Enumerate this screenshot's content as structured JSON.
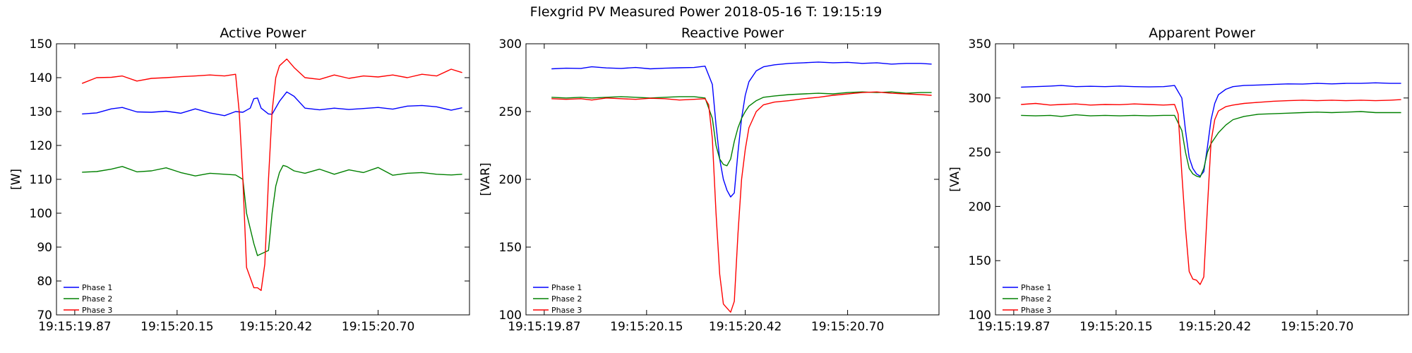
{
  "figure_title": "Flexgrid PV Measured Power 2018-05-16 T: 19:15:19",
  "colors": {
    "phase1": "#0000ff",
    "phase2": "#008000",
    "phase3": "#ff0000"
  },
  "chart_data": [
    {
      "type": "line",
      "title": "Active Power",
      "xlabel": "",
      "ylabel": "[W]",
      "ylim": [
        70,
        150
      ],
      "yticks": [
        70,
        80,
        90,
        100,
        110,
        120,
        130,
        140,
        150
      ],
      "x_range_s": [
        19.82,
        20.95
      ],
      "xticks": [
        19.87,
        20.15,
        20.42,
        20.7
      ],
      "xtick_labels": [
        "19:15:19.87",
        "19:15:20.15",
        "19:15:20.42",
        "19:15:20.70"
      ],
      "grid": false,
      "legend_placement": "bottom-left",
      "series": [
        {
          "name": "Phase 1",
          "color": "#0000ff",
          "x": [
            19.89,
            19.93,
            19.97,
            20.0,
            20.04,
            20.08,
            20.12,
            20.16,
            20.2,
            20.24,
            20.28,
            20.31,
            20.33,
            20.35,
            20.36,
            20.37,
            20.38,
            20.4,
            20.41,
            20.43,
            20.45,
            20.47,
            20.5,
            20.54,
            20.58,
            20.62,
            20.66,
            20.7,
            20.74,
            20.78,
            20.82,
            20.86,
            20.9,
            20.93
          ],
          "y": [
            129.3,
            129.6,
            130.8,
            131.2,
            129.9,
            129.8,
            130.1,
            129.5,
            130.8,
            129.6,
            128.8,
            130.0,
            129.8,
            131.0,
            133.8,
            134.0,
            131.0,
            129.3,
            129.2,
            133.0,
            135.8,
            134.5,
            131.0,
            130.5,
            131.0,
            130.6,
            130.9,
            131.2,
            130.7,
            131.6,
            131.8,
            131.4,
            130.4,
            131.1
          ]
        },
        {
          "name": "Phase 2",
          "color": "#008000",
          "x": [
            19.89,
            19.93,
            19.97,
            20.0,
            20.04,
            20.08,
            20.12,
            20.16,
            20.2,
            20.24,
            20.28,
            20.31,
            20.33,
            20.34,
            20.36,
            20.37,
            20.38,
            20.4,
            20.41,
            20.42,
            20.43,
            20.44,
            20.45,
            20.47,
            20.5,
            20.54,
            20.58,
            20.62,
            20.66,
            20.7,
            20.74,
            20.78,
            20.82,
            20.86,
            20.9,
            20.93
          ],
          "y": [
            112.1,
            112.3,
            113.0,
            113.8,
            112.2,
            112.5,
            113.4,
            112.0,
            111.0,
            111.8,
            111.5,
            111.3,
            110.0,
            100.0,
            91.0,
            87.5,
            88.0,
            89.0,
            100.0,
            108.0,
            112.0,
            114.1,
            113.8,
            112.5,
            111.8,
            113.0,
            111.5,
            112.8,
            112.0,
            113.5,
            111.2,
            111.8,
            112.0,
            111.5,
            111.3,
            111.5
          ]
        },
        {
          "name": "Phase 3",
          "color": "#ff0000",
          "x": [
            19.89,
            19.93,
            19.97,
            20.0,
            20.04,
            20.08,
            20.12,
            20.16,
            20.2,
            20.24,
            20.28,
            20.31,
            20.32,
            20.33,
            20.34,
            20.36,
            20.37,
            20.38,
            20.39,
            20.4,
            20.41,
            20.42,
            20.43,
            20.45,
            20.47,
            20.5,
            20.54,
            20.58,
            20.62,
            20.66,
            20.7,
            20.74,
            20.78,
            20.82,
            20.86,
            20.9,
            20.93
          ],
          "y": [
            138.3,
            140.0,
            140.1,
            140.5,
            139.0,
            139.8,
            140.0,
            140.3,
            140.5,
            140.8,
            140.5,
            141.0,
            130.0,
            110.0,
            84.0,
            78.0,
            78.0,
            77.2,
            85.0,
            110.0,
            130.0,
            140.0,
            143.5,
            145.5,
            143.0,
            140.0,
            139.5,
            140.8,
            139.8,
            140.5,
            140.2,
            140.8,
            140.0,
            141.0,
            140.5,
            142.5,
            141.5
          ]
        }
      ]
    },
    {
      "type": "line",
      "title": "Reactive Power",
      "xlabel": "",
      "ylabel": "[VAR]",
      "ylim": [
        100,
        300
      ],
      "yticks": [
        100,
        150,
        200,
        250,
        300
      ],
      "x_range_s": [
        19.82,
        20.95
      ],
      "xticks": [
        19.87,
        20.15,
        20.42,
        20.7
      ],
      "xtick_labels": [
        "19:15:19.87",
        "19:15:20.15",
        "19:15:20.42",
        "19:15:20.70"
      ],
      "grid": false,
      "legend_placement": "bottom-left",
      "series": [
        {
          "name": "Phase 1",
          "color": "#0000ff",
          "x": [
            19.89,
            19.93,
            19.97,
            20.0,
            20.04,
            20.08,
            20.12,
            20.16,
            20.2,
            20.24,
            20.28,
            20.31,
            20.33,
            20.34,
            20.35,
            20.36,
            20.37,
            20.38,
            20.39,
            20.4,
            20.41,
            20.42,
            20.43,
            20.45,
            20.47,
            20.5,
            20.54,
            20.58,
            20.62,
            20.66,
            20.7,
            20.74,
            20.78,
            20.82,
            20.86,
            20.9,
            20.93
          ],
          "y": [
            281.5,
            282.0,
            281.8,
            283.0,
            282.2,
            281.8,
            282.5,
            281.5,
            282.0,
            282.3,
            282.5,
            283.5,
            270.0,
            240.0,
            215.0,
            200.0,
            192.0,
            187.0,
            190.0,
            220.0,
            245.0,
            262.0,
            272.0,
            280.0,
            283.0,
            284.5,
            285.5,
            286.0,
            286.5,
            286.0,
            286.3,
            285.5,
            286.0,
            285.0,
            285.5,
            285.5,
            285.0
          ]
        },
        {
          "name": "Phase 2",
          "color": "#008000",
          "x": [
            19.89,
            19.93,
            19.97,
            20.0,
            20.04,
            20.08,
            20.12,
            20.16,
            20.2,
            20.24,
            20.28,
            20.31,
            20.33,
            20.34,
            20.35,
            20.36,
            20.37,
            20.38,
            20.39,
            20.4,
            20.41,
            20.42,
            20.43,
            20.45,
            20.47,
            20.5,
            20.54,
            20.58,
            20.62,
            20.66,
            20.7,
            20.74,
            20.78,
            20.82,
            20.86,
            20.9,
            20.93
          ],
          "y": [
            260.5,
            260.0,
            260.5,
            260.0,
            260.5,
            261.0,
            260.5,
            260.0,
            260.5,
            261.0,
            261.0,
            260.0,
            245.0,
            225.0,
            215.0,
            211.0,
            210.0,
            215.0,
            228.0,
            238.0,
            245.0,
            250.0,
            254.0,
            258.0,
            260.5,
            261.5,
            262.5,
            263.0,
            263.5,
            263.0,
            264.0,
            264.5,
            264.0,
            264.5,
            263.5,
            264.0,
            264.0
          ]
        },
        {
          "name": "Phase 3",
          "color": "#ff0000",
          "x": [
            19.89,
            19.93,
            19.97,
            20.0,
            20.04,
            20.08,
            20.12,
            20.16,
            20.2,
            20.24,
            20.28,
            20.31,
            20.32,
            20.33,
            20.34,
            20.35,
            20.36,
            20.37,
            20.38,
            20.39,
            20.4,
            20.41,
            20.42,
            20.43,
            20.45,
            20.47,
            20.5,
            20.54,
            20.58,
            20.62,
            20.66,
            20.7,
            20.74,
            20.78,
            20.82,
            20.86,
            20.9,
            20.93
          ],
          "y": [
            259.5,
            259.0,
            259.5,
            258.5,
            260.0,
            259.5,
            259.0,
            259.8,
            259.5,
            258.5,
            259.0,
            259.5,
            255.0,
            230.0,
            175.0,
            130.0,
            108.0,
            105.0,
            102.0,
            110.0,
            160.0,
            200.0,
            222.0,
            238.0,
            250.0,
            255.0,
            257.0,
            258.0,
            259.5,
            260.5,
            262.0,
            263.0,
            264.0,
            264.5,
            263.5,
            263.0,
            262.5,
            262.0
          ]
        }
      ]
    },
    {
      "type": "line",
      "title": "Apparent Power",
      "xlabel": "",
      "ylabel": "[VA]",
      "ylim": [
        100,
        350
      ],
      "yticks": [
        100,
        150,
        200,
        250,
        300,
        350
      ],
      "x_range_s": [
        19.82,
        20.95
      ],
      "xticks": [
        19.87,
        20.15,
        20.42,
        20.7
      ],
      "xtick_labels": [
        "19:15:19.87",
        "19:15:20.15",
        "19:15:20.42",
        "19:15:20.70"
      ],
      "grid": false,
      "legend_placement": "bottom-left",
      "series": [
        {
          "name": "Phase 1",
          "color": "#0000ff",
          "x": [
            19.89,
            19.93,
            19.97,
            20.0,
            20.04,
            20.08,
            20.12,
            20.16,
            20.2,
            20.24,
            20.28,
            20.31,
            20.33,
            20.34,
            20.35,
            20.36,
            20.37,
            20.38,
            20.39,
            20.4,
            20.41,
            20.42,
            20.43,
            20.45,
            20.47,
            20.5,
            20.54,
            20.58,
            20.62,
            20.66,
            20.7,
            20.74,
            20.78,
            20.82,
            20.86,
            20.9,
            20.93
          ],
          "y": [
            310.0,
            310.5,
            311.0,
            311.5,
            310.5,
            310.8,
            310.5,
            311.0,
            310.5,
            310.2,
            310.5,
            311.5,
            300.0,
            270.0,
            245.0,
            235.0,
            230.0,
            228.0,
            232.0,
            255.0,
            280.0,
            295.0,
            303.0,
            308.0,
            310.5,
            311.5,
            312.0,
            312.5,
            313.0,
            312.8,
            313.5,
            313.0,
            313.5,
            313.5,
            314.0,
            313.5,
            313.5
          ]
        },
        {
          "name": "Phase 2",
          "color": "#008000",
          "x": [
            19.89,
            19.93,
            19.97,
            20.0,
            20.04,
            20.08,
            20.12,
            20.16,
            20.2,
            20.24,
            20.28,
            20.31,
            20.33,
            20.34,
            20.35,
            20.36,
            20.37,
            20.38,
            20.39,
            20.4,
            20.41,
            20.42,
            20.43,
            20.45,
            20.47,
            20.5,
            20.54,
            20.58,
            20.62,
            20.66,
            20.7,
            20.74,
            20.78,
            20.82,
            20.86,
            20.9,
            20.93
          ],
          "y": [
            284.0,
            283.5,
            284.0,
            283.0,
            284.5,
            283.5,
            284.0,
            283.5,
            284.0,
            283.5,
            284.0,
            284.0,
            270.0,
            250.0,
            235.0,
            230.0,
            228.0,
            227.0,
            235.0,
            250.0,
            258.0,
            263.0,
            268.0,
            275.0,
            280.0,
            283.0,
            285.0,
            285.5,
            286.0,
            286.5,
            287.0,
            286.5,
            287.0,
            287.5,
            286.5,
            286.5,
            286.5
          ]
        },
        {
          "name": "Phase 3",
          "color": "#ff0000",
          "x": [
            19.89,
            19.93,
            19.97,
            20.0,
            20.04,
            20.08,
            20.12,
            20.16,
            20.2,
            20.24,
            20.28,
            20.31,
            20.32,
            20.33,
            20.34,
            20.35,
            20.36,
            20.37,
            20.38,
            20.39,
            20.4,
            20.41,
            20.42,
            20.43,
            20.45,
            20.47,
            20.5,
            20.54,
            20.58,
            20.62,
            20.66,
            20.7,
            20.74,
            20.78,
            20.82,
            20.86,
            20.9,
            20.93
          ],
          "y": [
            294.0,
            295.0,
            293.5,
            294.0,
            294.5,
            293.5,
            294.0,
            293.8,
            294.5,
            294.0,
            293.5,
            294.0,
            285.0,
            230.0,
            180.0,
            140.0,
            133.0,
            132.0,
            128.0,
            135.0,
            200.0,
            260.0,
            280.0,
            288.0,
            292.0,
            293.5,
            295.0,
            296.0,
            297.0,
            297.5,
            298.0,
            297.5,
            298.0,
            297.5,
            298.0,
            297.5,
            298.0,
            298.5
          ]
        }
      ]
    }
  ]
}
